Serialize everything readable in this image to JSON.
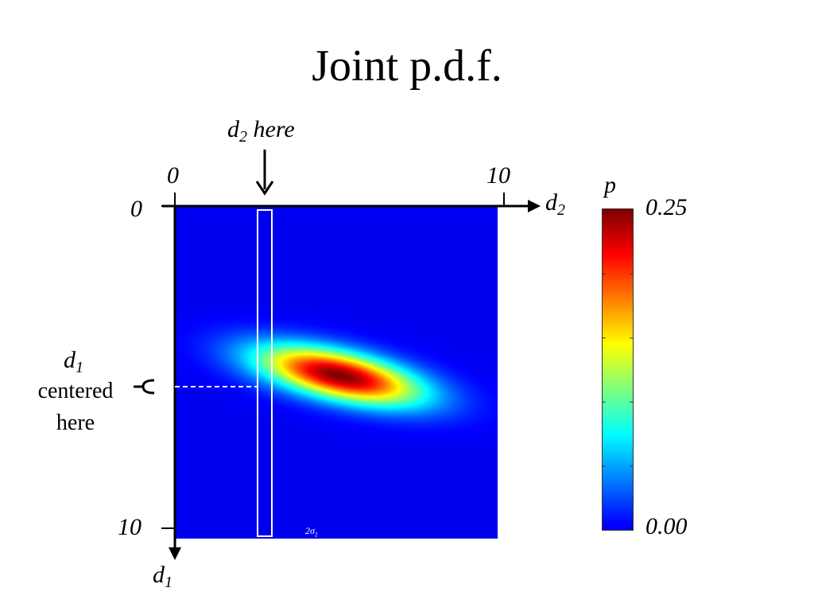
{
  "title": "Joint p.d.f.",
  "annotation_top": {
    "var": "d",
    "sub": "2",
    "text": "here"
  },
  "annotation_left": {
    "var": "d",
    "sub": "1",
    "line2": "centered",
    "line3": "here"
  },
  "axes": {
    "x": {
      "var": "d",
      "sub": "2",
      "ticks": [
        "0",
        "10"
      ]
    },
    "y": {
      "var": "d",
      "sub": "1",
      "ticks": [
        "0",
        "10"
      ]
    }
  },
  "colorbar": {
    "label": "p",
    "max": "0.25",
    "min": "0.00",
    "colormap": "jet"
  },
  "sigma_label": {
    "text": "2σ",
    "sub": "1"
  },
  "chart_data": {
    "type": "heatmap",
    "title": "Joint p.d.f.",
    "xlabel": "d2",
    "ylabel": "d1",
    "xlim": [
      0,
      10
    ],
    "ylim": [
      0,
      10
    ],
    "zlim": [
      0,
      0.25
    ],
    "colorbar_label": "p",
    "distribution": {
      "kind": "bivariate-gaussian",
      "peak_d2": 5.1,
      "peak_d1": 5.1,
      "peak_value": 0.25,
      "major_axis_sd": 1.8,
      "minor_axis_sd": 0.5,
      "rotation_deg": -12
    },
    "highlight_column_d2": 2.6,
    "highlight_row_d1": 5.6
  },
  "colors": {
    "background_low": "#00008f",
    "box": "#ffffff",
    "axis": "#000000"
  }
}
